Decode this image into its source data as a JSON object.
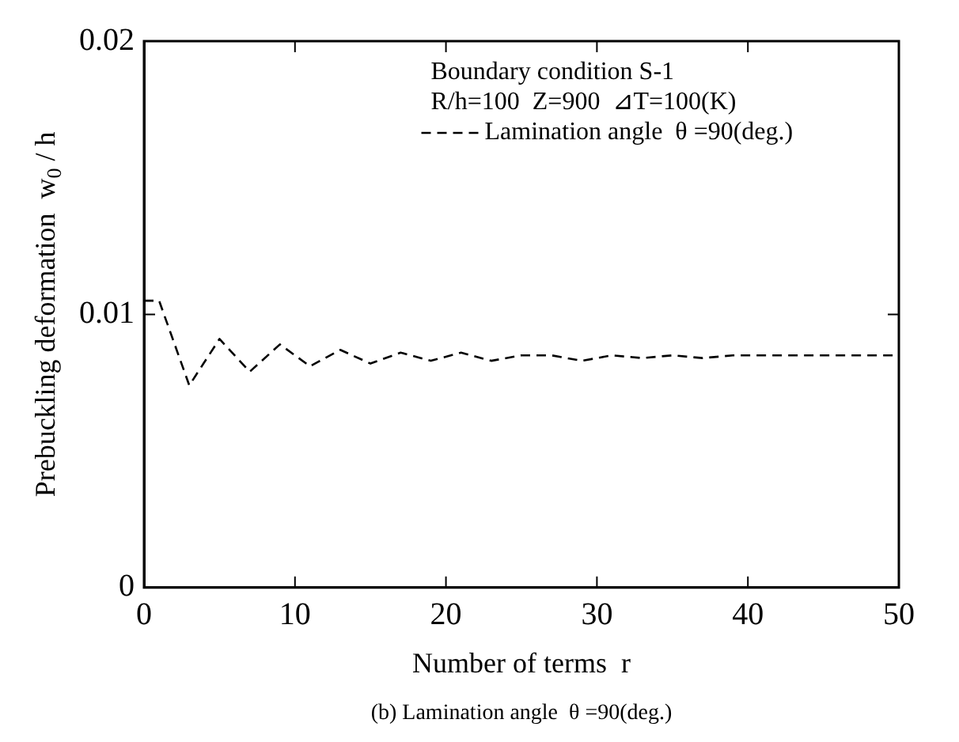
{
  "chart_data": {
    "type": "line",
    "xlabel": "Number of terms  r",
    "ylabel": "Prebuckling deformation  w$_{0}$ / h",
    "x": [
      0,
      1,
      3,
      5,
      7,
      9,
      11,
      13,
      15,
      17,
      19,
      21,
      23,
      25,
      27,
      29,
      31,
      33,
      35,
      37,
      39,
      41,
      43,
      45,
      47,
      50
    ],
    "series": [
      {
        "name": "Lamination angle  θ =90(deg.)",
        "color": "#000000",
        "line_style": "dashed",
        "values": [
          0.0105,
          0.0105,
          0.0074,
          0.0091,
          0.0079,
          0.0089,
          0.0081,
          0.0087,
          0.0082,
          0.0086,
          0.0083,
          0.0086,
          0.0083,
          0.0085,
          0.0085,
          0.0083,
          0.0085,
          0.0084,
          0.0085,
          0.0084,
          0.0085,
          0.0085,
          0.0085,
          0.0085,
          0.0085,
          0.0085
        ]
      }
    ],
    "xlim": [
      0,
      50
    ],
    "xticks": [
      0,
      10,
      20,
      30,
      40,
      50
    ],
    "ylim": [
      0,
      0.02
    ],
    "yticks": [
      0,
      0.01,
      0.02
    ],
    "grid": false,
    "legend": "top right",
    "marker": "none",
    "annotations": [
      "Boundary condition S-1",
      "R/h=100  Z=900  ⊿T=100(K)",
      "(b) Lamination angle  θ =90(deg.)"
    ]
  }
}
